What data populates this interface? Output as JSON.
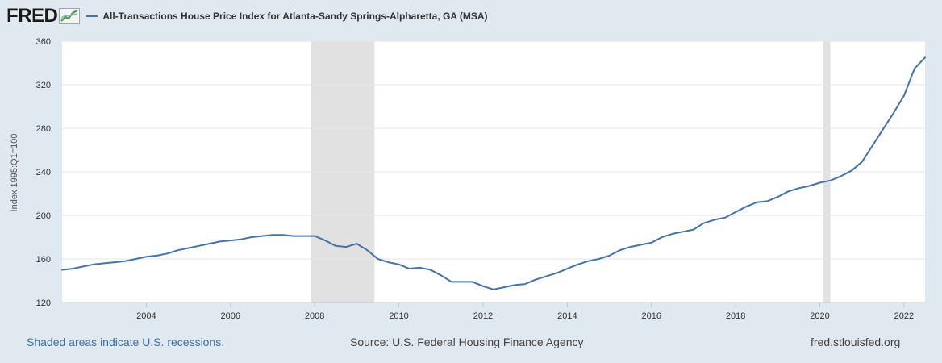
{
  "logo": {
    "text": "FRED"
  },
  "legend": {
    "label": "All-Transactions House Price Index for Atlanta-Sandy Springs-Alpharetta, GA (MSA)"
  },
  "footer": {
    "recession_note": "Shaded areas indicate U.S. recessions.",
    "source": "Source: U.S. Federal Housing Finance Agency",
    "site": "fred.stlouisfed.org"
  },
  "colors": {
    "line": "#4572a7",
    "recession": "#e1e1e1",
    "background": "#e1e9f0",
    "plot": "#ffffff"
  },
  "chart_data": {
    "type": "line",
    "title": "All-Transactions House Price Index for Atlanta-Sandy Springs-Alpharetta, GA (MSA)",
    "ylabel": "Index 1995:Q1=100",
    "xlabel": "",
    "ylim": [
      120,
      360
    ],
    "xlim": [
      2002.0,
      2022.5
    ],
    "yticks": [
      120,
      160,
      200,
      240,
      280,
      320,
      360
    ],
    "xticks": [
      2004,
      2006,
      2008,
      2010,
      2012,
      2014,
      2016,
      2018,
      2020,
      2022
    ],
    "grid": true,
    "legend": "top-left",
    "recessions": [
      [
        2007.92,
        2009.42
      ],
      [
        2020.08,
        2020.25
      ]
    ],
    "series": [
      {
        "name": "All-Transactions House Price Index for Atlanta-Sandy Springs-Alpharetta, GA (MSA)",
        "x": [
          2002.0,
          2002.25,
          2002.5,
          2002.75,
          2003.0,
          2003.25,
          2003.5,
          2003.75,
          2004.0,
          2004.25,
          2004.5,
          2004.75,
          2005.0,
          2005.25,
          2005.5,
          2005.75,
          2006.0,
          2006.25,
          2006.5,
          2006.75,
          2007.0,
          2007.25,
          2007.5,
          2007.75,
          2008.0,
          2008.25,
          2008.5,
          2008.75,
          2009.0,
          2009.25,
          2009.5,
          2009.75,
          2010.0,
          2010.25,
          2010.5,
          2010.75,
          2011.0,
          2011.25,
          2011.5,
          2011.75,
          2012.0,
          2012.25,
          2012.5,
          2012.75,
          2013.0,
          2013.25,
          2013.5,
          2013.75,
          2014.0,
          2014.25,
          2014.5,
          2014.75,
          2015.0,
          2015.25,
          2015.5,
          2015.75,
          2016.0,
          2016.25,
          2016.5,
          2016.75,
          2017.0,
          2017.25,
          2017.5,
          2017.75,
          2018.0,
          2018.25,
          2018.5,
          2018.75,
          2019.0,
          2019.25,
          2019.5,
          2019.75,
          2020.0,
          2020.25,
          2020.5,
          2020.75,
          2021.0,
          2021.25,
          2021.5,
          2021.75,
          2022.0,
          2022.25,
          2022.5
        ],
        "y": [
          150,
          151,
          153,
          155,
          156,
          157,
          158,
          160,
          162,
          163,
          165,
          168,
          170,
          172,
          174,
          176,
          177,
          178,
          180,
          181,
          182,
          182,
          181,
          181,
          181,
          177,
          172,
          171,
          174,
          168,
          160,
          157,
          155,
          151,
          152,
          150,
          145,
          139,
          139,
          139,
          135,
          132,
          134,
          136,
          137,
          141,
          144,
          147,
          151,
          155,
          158,
          160,
          163,
          168,
          171,
          173,
          175,
          180,
          183,
          185,
          187,
          193,
          196,
          198,
          203,
          208,
          212,
          213,
          217,
          222,
          225,
          227,
          230,
          232,
          236,
          241,
          249,
          264,
          279,
          294,
          310,
          335,
          345
        ]
      }
    ]
  }
}
